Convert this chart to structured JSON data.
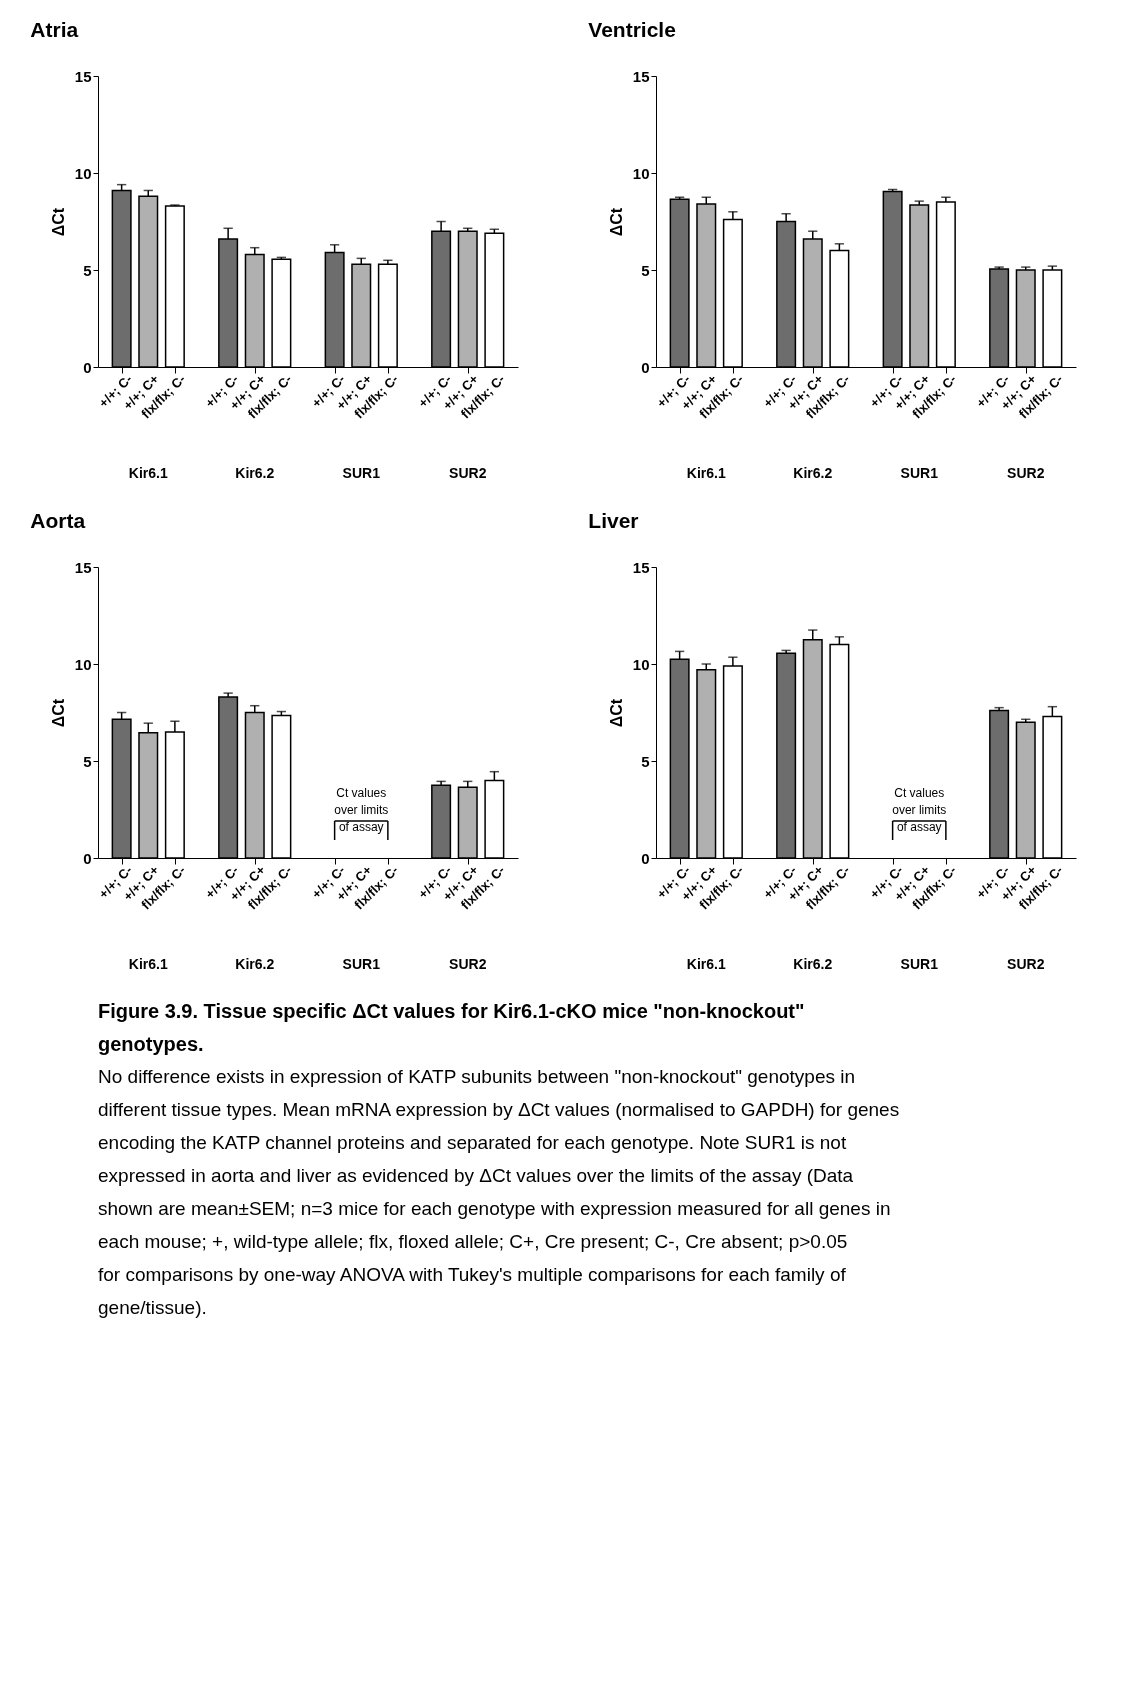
{
  "chart_data": [
    {
      "type": "bar",
      "title": "Atria",
      "ylabel": "ΔCt",
      "categories": [
        "Kir6.1",
        "Kir6.2",
        "SUR1",
        "SUR2"
      ],
      "ylim": [
        0,
        15
      ],
      "yticks": [
        0,
        5,
        10,
        15
      ],
      "grid": false,
      "legend": "bottom",
      "series": [
        {
          "name": "+/+; C-",
          "color": "#6d6d6d",
          "values": [
            9.1,
            6.6,
            5.9,
            7.0
          ],
          "errors": [
            [
              9.1,
              9.4
            ],
            [
              6.6,
              7.15
            ],
            [
              5.9,
              6.3
            ],
            [
              7.0,
              7.5
            ]
          ]
        },
        {
          "name": "+/+; C+",
          "color": "#b0b0b0",
          "values": [
            8.8,
            5.8,
            5.3,
            7.0
          ],
          "errors": [
            [
              8.8,
              9.1
            ],
            [
              5.8,
              6.15
            ],
            [
              5.3,
              5.6
            ],
            [
              7.0,
              7.15
            ]
          ]
        },
        {
          "name": "flx/flx; C-",
          "color": "#ffffff",
          "values": [
            8.3,
            5.55,
            5.3,
            6.9
          ],
          "errors": [
            [
              8.3,
              8.35
            ],
            [
              5.55,
              5.65
            ],
            [
              5.3,
              5.5
            ],
            [
              6.9,
              7.1
            ]
          ]
        }
      ]
    },
    {
      "type": "bar",
      "title": "Ventricle",
      "ylabel": "ΔCt",
      "categories": [
        "Kir6.1",
        "Kir6.2",
        "SUR1",
        "SUR2"
      ],
      "ylim": [
        0,
        15
      ],
      "yticks": [
        0,
        5,
        10,
        15
      ],
      "grid": false,
      "legend": "bottom",
      "series": [
        {
          "name": "+/+; C-",
          "color": "#6d6d6d",
          "values": [
            8.65,
            7.5,
            9.05,
            5.05
          ],
          "errors": [
            [
              8.65,
              8.75
            ],
            [
              7.5,
              7.9
            ],
            [
              9.05,
              9.15
            ],
            [
              5.05,
              5.15
            ]
          ]
        },
        {
          "name": "+/+; C+",
          "color": "#b0b0b0",
          "values": [
            8.4,
            6.6,
            8.35,
            5.0
          ],
          "errors": [
            [
              8.4,
              8.75
            ],
            [
              6.6,
              7.0
            ],
            [
              8.35,
              8.55
            ],
            [
              5.0,
              5.15
            ]
          ]
        },
        {
          "name": "flx/flx; C-",
          "color": "#ffffff",
          "values": [
            7.6,
            6.0,
            8.5,
            5.0
          ],
          "errors": [
            [
              7.6,
              8.0
            ],
            [
              6.0,
              6.35
            ],
            [
              8.5,
              8.75
            ],
            [
              5.0,
              5.2
            ]
          ]
        }
      ]
    },
    {
      "type": "bar",
      "title": "Aorta",
      "ylabel": "ΔCt",
      "categories": [
        "Kir6.1",
        "Kir6.2",
        "SUR1",
        "SUR2"
      ],
      "ylim": [
        0,
        15
      ],
      "yticks": [
        0,
        5,
        10,
        15
      ],
      "grid": false,
      "legend": "bottom",
      "annotations": [
        "Ct values over limits of assay"
      ],
      "series": [
        {
          "name": "+/+; C-",
          "color": "#6d6d6d",
          "values": [
            7.15,
            8.3,
            null,
            3.75
          ],
          "errors": [
            [
              7.15,
              7.5
            ],
            [
              8.3,
              8.5
            ],
            null,
            [
              3.75,
              3.95
            ]
          ]
        },
        {
          "name": "+/+; C+",
          "color": "#b0b0b0",
          "values": [
            6.45,
            7.5,
            null,
            3.65
          ],
          "errors": [
            [
              6.45,
              6.95
            ],
            [
              7.5,
              7.85
            ],
            null,
            [
              3.65,
              3.95
            ]
          ]
        },
        {
          "name": "flx/flx; C-",
          "color": "#ffffff",
          "values": [
            6.5,
            7.35,
            null,
            4.0
          ],
          "errors": [
            [
              6.5,
              7.05
            ],
            [
              7.35,
              7.55
            ],
            null,
            [
              4.0,
              4.45
            ]
          ]
        }
      ]
    },
    {
      "type": "bar",
      "title": "Liver",
      "ylabel": "ΔCt",
      "categories": [
        "Kir6.1",
        "Kir6.2",
        "SUR1",
        "SUR2"
      ],
      "ylim": [
        0,
        15
      ],
      "yticks": [
        0,
        5,
        10,
        15
      ],
      "grid": false,
      "legend": "bottom",
      "annotations": [
        "Ct values over limits of assay"
      ],
      "series": [
        {
          "name": "+/+; C-",
          "color": "#6d6d6d",
          "values": [
            10.25,
            10.55,
            null,
            7.6
          ],
          "errors": [
            [
              10.25,
              10.65
            ],
            [
              10.55,
              10.7
            ],
            null,
            [
              7.6,
              7.75
            ]
          ]
        },
        {
          "name": "+/+; C+",
          "color": "#b0b0b0",
          "values": [
            9.7,
            11.25,
            null,
            7.0
          ],
          "errors": [
            [
              9.7,
              10.0
            ],
            [
              11.25,
              11.75
            ],
            null,
            [
              7.0,
              7.15
            ]
          ]
        },
        {
          "name": "flx/flx; C-",
          "color": "#ffffff",
          "values": [
            9.9,
            11.0,
            null,
            7.3
          ],
          "errors": [
            [
              9.9,
              10.35
            ],
            [
              11.0,
              11.4
            ],
            null,
            [
              7.3,
              7.8
            ]
          ]
        }
      ]
    },
    {
      "type": "other",
      "title": "Figure 3.9. Tissue specific ΔCt values for Kir6.1-cKO mice \"non-knockout\" genotypes.",
      "annotations": [
        "No difference exists in expression of KATP subunits between \"non-knockout\" genotypes in different tissue types. Mean mRNA expression by ΔCt values (normalised to GAPDH) for genes encoding the KATP channel proteins and separated for each genotype. Note SUR1 is not expressed in aorta and liver as evidenced by ΔCt values over the limits of the assay (Data shown are mean±SEM; n=3 mice for each genotype with expression measured for all genes in each mouse; +, wild-type allele; flx, floxed allele; C+, Cre present; C-, Cre absent; p>0.05 for comparisons by one-way ANOVA with Tukey's multiple comparisons for each family of gene/tissue)."
      ]
    }
  ]
}
